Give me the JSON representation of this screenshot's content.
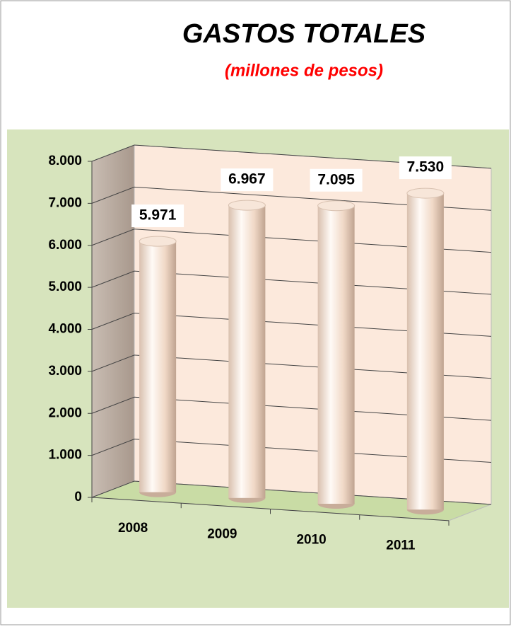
{
  "chart_data": {
    "type": "bar",
    "title": "GASTOS TOTALES",
    "subtitle": "(millones de pesos)",
    "categories": [
      "2008",
      "2009",
      "2010",
      "2011"
    ],
    "values": [
      5971,
      6967,
      7095,
      7530
    ],
    "value_labels": [
      "5.971",
      "6.967",
      "7.095",
      "7.530"
    ],
    "ylim": [
      0,
      8000
    ],
    "yticks": [
      0,
      {
        "value": 1000,
        "label": "1.000"
      },
      {
        "value": 2000,
        "label": "2.000"
      },
      {
        "value": 3000,
        "label": "3.000"
      },
      {
        "value": 4000,
        "label": "4.000"
      },
      {
        "value": 5000,
        "label": "5.000"
      },
      {
        "value": 6000,
        "label": "6.000"
      },
      {
        "value": 7000,
        "label": "7.000"
      },
      {
        "value": 8000,
        "label": "8.000"
      }
    ],
    "grid": true,
    "color": "#f2dccb"
  }
}
